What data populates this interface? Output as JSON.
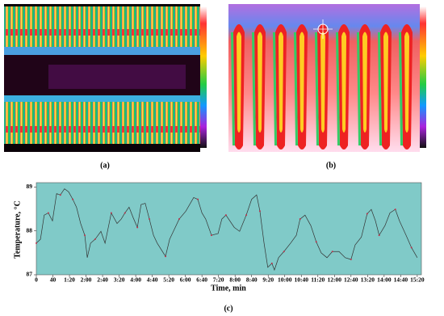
{
  "panel_labels": [
    "(a)",
    "(b)"
  ],
  "chart_data": {
    "type": "line",
    "caption": "(c)",
    "x_label": "Time, min",
    "y_label": "Temperature, °C",
    "xlim": [
      0,
      930
    ],
    "ylim": [
      87,
      89.1
    ],
    "xticks": [
      0,
      40,
      {
        "value": 80,
        "label": "1:20"
      },
      {
        "value": 120,
        "label": "2:00"
      },
      {
        "value": 160,
        "label": "2:40"
      },
      {
        "value": 200,
        "label": "3:20"
      },
      {
        "value": 240,
        "label": "4:00"
      },
      {
        "value": 280,
        "label": "4:40"
      },
      {
        "value": 320,
        "label": "5:20"
      },
      {
        "value": 360,
        "label": "6:00"
      },
      {
        "value": 400,
        "label": "6:40"
      },
      {
        "value": 440,
        "label": "7:20"
      },
      {
        "value": 480,
        "label": "8:00"
      },
      {
        "value": 520,
        "label": "8:40"
      },
      {
        "value": 560,
        "label": "9:20"
      },
      {
        "value": 600,
        "label": "10:00"
      },
      {
        "value": 640,
        "label": "10:40"
      },
      {
        "value": 680,
        "label": "11:20"
      },
      {
        "value": 720,
        "label": "12:00"
      },
      {
        "value": 760,
        "label": "12:40"
      },
      {
        "value": 800,
        "label": "13:20"
      },
      {
        "value": 840,
        "label": "14:00"
      },
      {
        "value": 880,
        "label": "14:40"
      },
      {
        "value": 920,
        "label": "15:20"
      }
    ],
    "yticks": [
      87,
      88,
      89
    ],
    "background": "#80cac8",
    "x": [
      0,
      10,
      19,
      29,
      39,
      49,
      58,
      68,
      78,
      88,
      97,
      107,
      117,
      123,
      131,
      142,
      156,
      166,
      181,
      195,
      205,
      214,
      224,
      234,
      244,
      253,
      263,
      273,
      283,
      292,
      312,
      322,
      331,
      345,
      361,
      380,
      390,
      400,
      409,
      423,
      439,
      448,
      458,
      478,
      491,
      507,
      520,
      532,
      540,
      550,
      559,
      569,
      575,
      585,
      598,
      614,
      628,
      637,
      649,
      663,
      676,
      688,
      702,
      715,
      731,
      746,
      760,
      770,
      785,
      799,
      809,
      819,
      828,
      842,
      854,
      867,
      877,
      893,
      906,
      920
    ],
    "series": [
      {
        "color": "#333333",
        "marker_color": "#c0304a",
        "values": [
          87.72,
          87.81,
          88.36,
          88.41,
          88.23,
          88.85,
          88.82,
          88.96,
          88.89,
          88.72,
          88.54,
          88.17,
          87.9,
          87.39,
          87.72,
          87.81,
          87.99,
          87.72,
          88.41,
          88.17,
          88.27,
          88.41,
          88.54,
          88.3,
          88.08,
          88.6,
          88.63,
          88.27,
          87.9,
          87.72,
          87.42,
          87.81,
          87.99,
          88.27,
          88.45,
          88.76,
          88.72,
          88.41,
          88.27,
          87.9,
          87.94,
          88.27,
          88.36,
          88.08,
          87.99,
          88.36,
          88.72,
          88.82,
          88.45,
          87.72,
          87.17,
          87.26,
          87.11,
          87.39,
          87.53,
          87.72,
          87.9,
          88.27,
          88.36,
          88.12,
          87.75,
          87.5,
          87.39,
          87.53,
          87.53,
          87.39,
          87.35,
          87.68,
          87.86,
          88.39,
          88.49,
          88.23,
          87.9,
          88.12,
          88.41,
          88.49,
          88.23,
          87.9,
          87.62,
          87.39
        ]
      }
    ]
  }
}
